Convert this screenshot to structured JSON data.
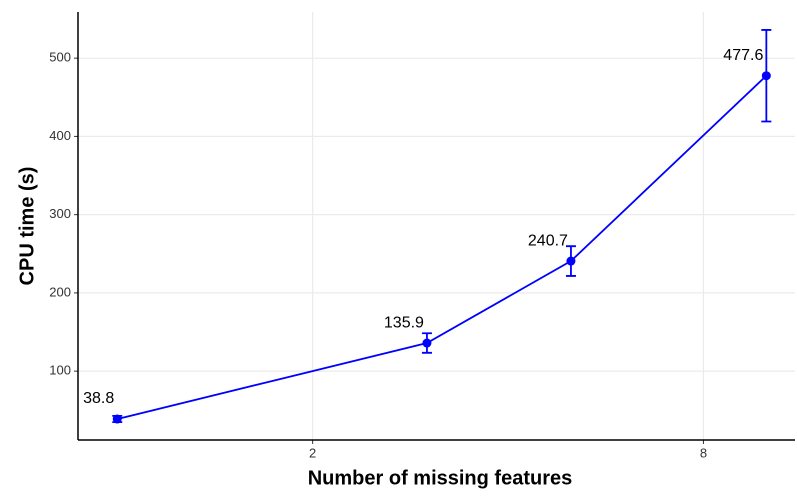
{
  "chart_data": {
    "type": "line",
    "xlabel": "Number of missing features",
    "ylabel": "CPU time (s)",
    "x": [
      1,
      3,
      5,
      10
    ],
    "series": [
      {
        "color": "#0000ff",
        "values": [
          38.8,
          135.9,
          240.7,
          477.6
        ],
        "errors": [
          4,
          12.5,
          19,
          58.5
        ]
      }
    ],
    "xscale": "log",
    "xlim": [
      0.87,
      11.07
    ],
    "xticks": [
      2,
      8
    ],
    "ylim": [
      12,
      559
    ],
    "yticks": [
      100,
      200,
      300,
      400,
      500
    ],
    "grid": true
  }
}
